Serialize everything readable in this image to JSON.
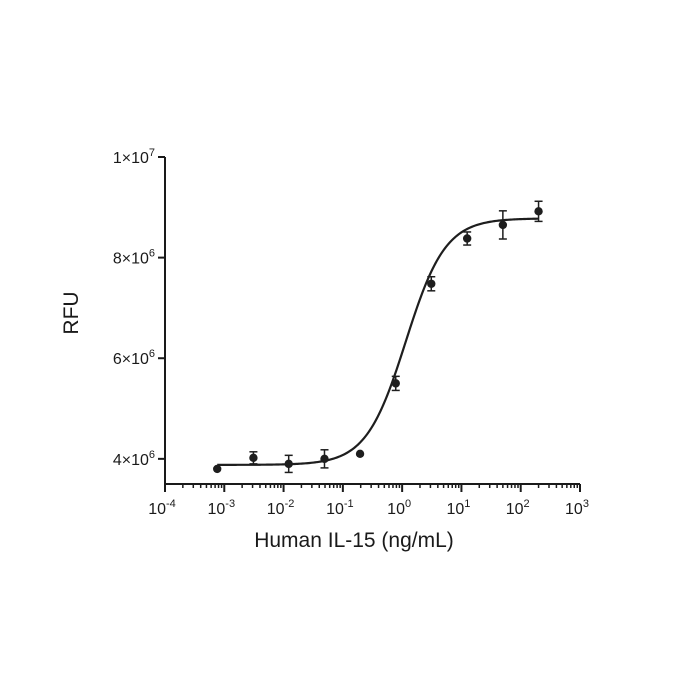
{
  "chart_data": {
    "type": "scatter",
    "xlabel": "Human IL-15 (ng/mL)",
    "ylabel": "RFU",
    "x_scale": "log",
    "xlim": [
      0.0001,
      1000
    ],
    "ylim": [
      3500000,
      10000000
    ],
    "x_ticks": [
      {
        "value": 0.0001,
        "base": "10",
        "exp": "-4"
      },
      {
        "value": 0.001,
        "base": "10",
        "exp": "-3"
      },
      {
        "value": 0.01,
        "base": "10",
        "exp": "-2"
      },
      {
        "value": 0.1,
        "base": "10",
        "exp": "-1"
      },
      {
        "value": 1,
        "base": "10",
        "exp": "0"
      },
      {
        "value": 10,
        "base": "10",
        "exp": "1"
      },
      {
        "value": 100,
        "base": "10",
        "exp": "2"
      },
      {
        "value": 1000,
        "base": "10",
        "exp": "3"
      }
    ],
    "y_ticks": [
      {
        "value": 4000000,
        "base": "4×10",
        "exp": "6"
      },
      {
        "value": 6000000,
        "base": "6×10",
        "exp": "6"
      },
      {
        "value": 8000000,
        "base": "8×10",
        "exp": "6"
      },
      {
        "value": 10000000,
        "base": "1×10",
        "exp": "7"
      }
    ],
    "points": [
      {
        "x": 0.00076,
        "y": 3800000,
        "err": 0
      },
      {
        "x": 0.0031,
        "y": 4020000,
        "err": 120000
      },
      {
        "x": 0.0122,
        "y": 3900000,
        "err": 170000
      },
      {
        "x": 0.049,
        "y": 4000000,
        "err": 180000
      },
      {
        "x": 0.195,
        "y": 4100000,
        "err": 0
      },
      {
        "x": 0.78,
        "y": 5500000,
        "err": 140000
      },
      {
        "x": 3.1,
        "y": 7480000,
        "err": 140000
      },
      {
        "x": 12.5,
        "y": 8380000,
        "err": 130000
      },
      {
        "x": 50,
        "y": 8650000,
        "err": 280000
      },
      {
        "x": 200,
        "y": 8920000,
        "err": 200000
      }
    ],
    "fit_curve": {
      "model": "4PL",
      "bottom": 3880000,
      "top": 8780000,
      "ec50": 1.15,
      "hill": 1.3
    },
    "grid": false,
    "legend": "none",
    "colors": {
      "series": "#1e1e1e",
      "axis": "#1a1a1a"
    }
  }
}
